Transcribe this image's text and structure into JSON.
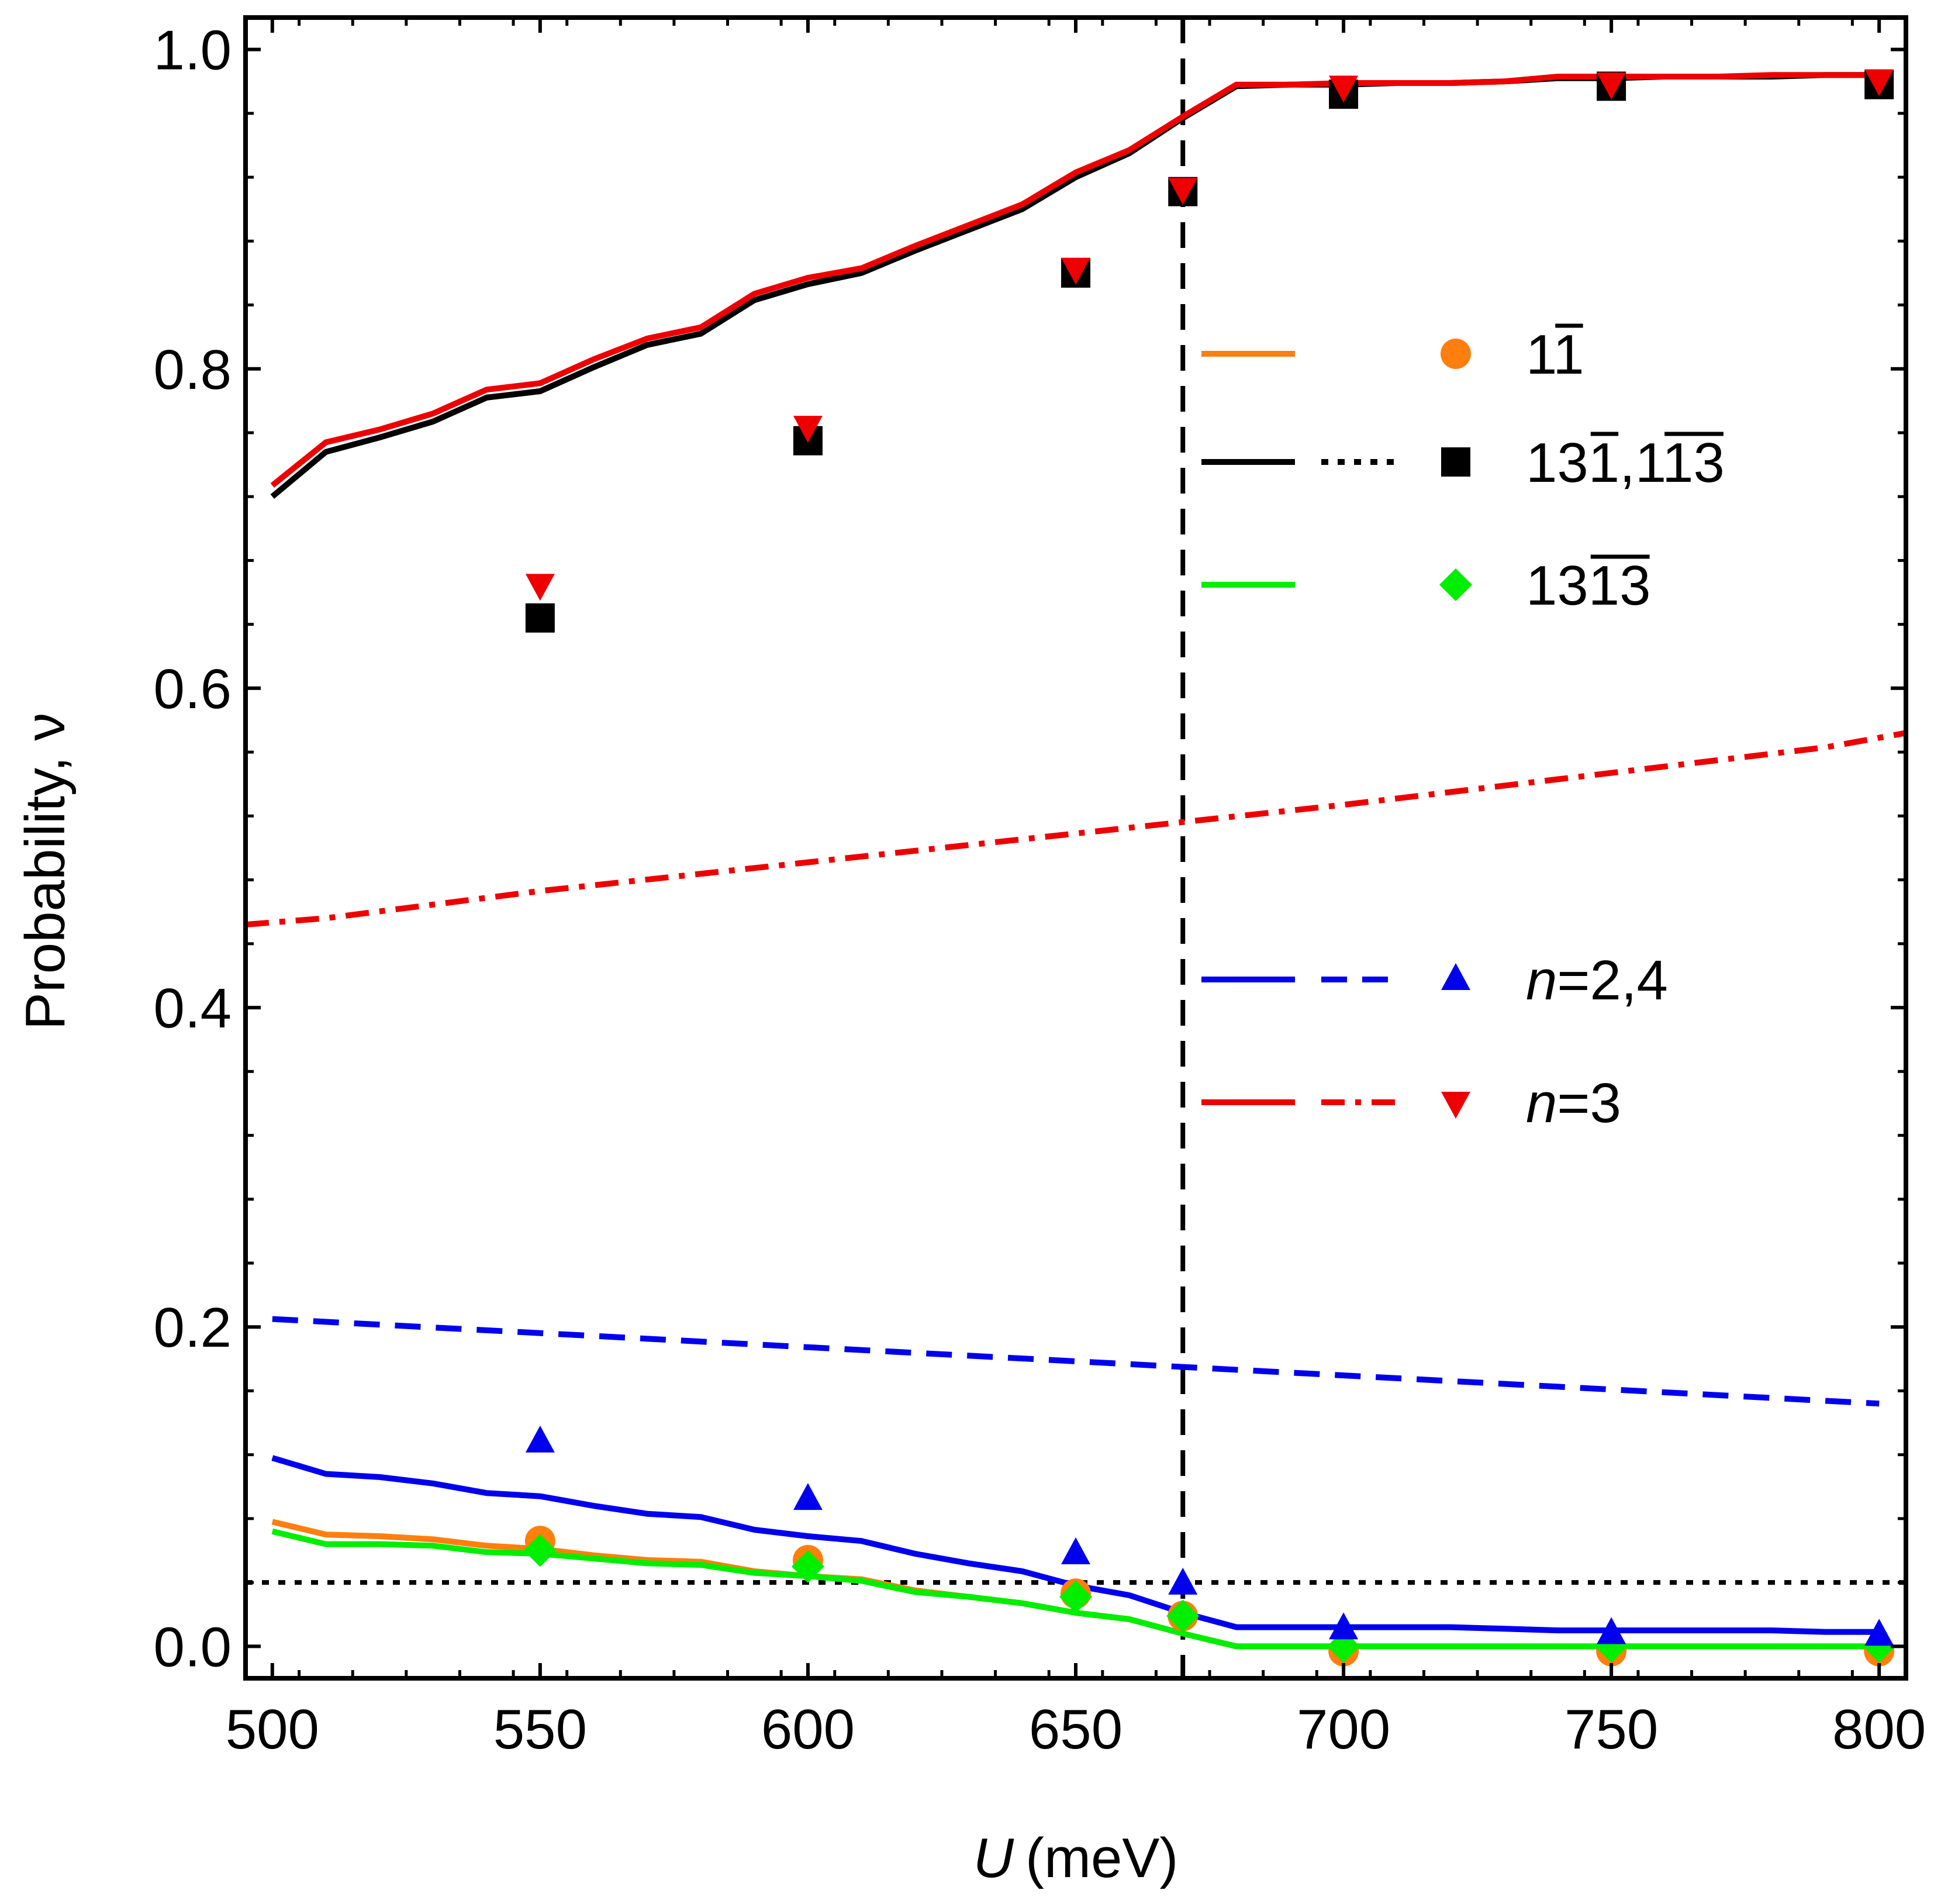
{
  "chart_data": {
    "type": "line",
    "title": "",
    "xlabel": "U (meV)",
    "xlabel_var": "U",
    "xlabel_unit": "(meV)",
    "ylabel": "Probability, ν",
    "xlim": [
      495,
      805
    ],
    "ylim": [
      -0.02,
      1.02
    ],
    "xticks": [
      500,
      550,
      600,
      650,
      700,
      750,
      800
    ],
    "xtick_labels": [
      "500",
      "550",
      "600",
      "650",
      "700",
      "750",
      "800"
    ],
    "yticks": [
      0.0,
      0.2,
      0.4,
      0.6,
      0.8,
      1.0
    ],
    "ytick_labels": [
      "0.0",
      "0.2",
      "0.4",
      "0.6",
      "0.8",
      "1.0"
    ],
    "vertical_line": {
      "x": 670,
      "style": "dashed",
      "color": "#000000"
    },
    "horizontal_line": {
      "y": 0.04,
      "style": "dotted",
      "color": "#000000"
    },
    "x_grid": [
      500,
      510,
      520,
      530,
      540,
      550,
      560,
      570,
      580,
      590,
      600,
      610,
      620,
      630,
      640,
      650,
      660,
      670,
      680,
      690,
      700,
      710,
      720,
      730,
      740,
      750,
      760,
      770,
      780,
      790,
      800
    ],
    "series": [
      {
        "name": "11̄ line",
        "color": "#ff7f0e",
        "style": "solid",
        "kind": "line",
        "values": [
          0.078,
          0.07,
          0.069,
          0.067,
          0.063,
          0.061,
          0.057,
          0.054,
          0.053,
          0.047,
          0.044,
          0.042,
          0.035,
          0.031,
          0.027,
          0.021,
          0.017,
          0.008,
          0.0,
          0.0,
          0.0,
          0.0,
          0.0,
          0.0,
          0.0,
          0.0,
          0.0,
          0.0,
          0.0,
          0.0,
          0.0
        ]
      },
      {
        "name": "131̄,11̄3̄ line",
        "color": "#000000",
        "style": "solid",
        "kind": "line",
        "values": [
          0.72,
          0.748,
          0.757,
          0.767,
          0.782,
          0.786,
          0.801,
          0.815,
          0.822,
          0.843,
          0.853,
          0.86,
          0.874,
          0.887,
          0.9,
          0.92,
          0.935,
          0.957,
          0.977,
          0.978,
          0.978,
          0.979,
          0.979,
          0.98,
          0.982,
          0.982,
          0.983,
          0.983,
          0.983,
          0.984,
          0.984
        ]
      },
      {
        "name": "131̄3̄ line",
        "color": "#00ee00",
        "style": "solid",
        "kind": "line",
        "values": [
          0.072,
          0.064,
          0.064,
          0.063,
          0.059,
          0.058,
          0.055,
          0.052,
          0.051,
          0.046,
          0.044,
          0.041,
          0.034,
          0.031,
          0.027,
          0.021,
          0.017,
          0.008,
          0.0,
          0.0,
          0.0,
          0.0,
          0.0,
          0.0,
          0.0,
          0.0,
          0.0,
          0.0,
          0.0,
          0.0,
          0.0
        ]
      },
      {
        "name": "n=2,4 solid",
        "color": "#0000ee",
        "style": "solid",
        "kind": "line",
        "values": [
          0.118,
          0.108,
          0.106,
          0.102,
          0.096,
          0.094,
          0.088,
          0.083,
          0.081,
          0.073,
          0.069,
          0.066,
          0.058,
          0.052,
          0.047,
          0.038,
          0.032,
          0.021,
          0.012,
          0.012,
          0.012,
          0.012,
          0.012,
          0.011,
          0.01,
          0.01,
          0.01,
          0.01,
          0.01,
          0.009,
          0.009
        ]
      },
      {
        "name": "n=3 solid",
        "color": "#ee0000",
        "style": "solid",
        "kind": "line",
        "values": [
          0.727,
          0.754,
          0.762,
          0.772,
          0.787,
          0.791,
          0.806,
          0.819,
          0.826,
          0.847,
          0.857,
          0.863,
          0.877,
          0.89,
          0.903,
          0.923,
          0.937,
          0.958,
          0.978,
          0.978,
          0.979,
          0.979,
          0.979,
          0.98,
          0.983,
          0.983,
          0.983,
          0.983,
          0.984,
          0.984,
          0.984
        ]
      },
      {
        "name": "n=2,4 dashed",
        "color": "#0000ee",
        "style": "dashed",
        "kind": "line",
        "x": [
          500,
          800
        ],
        "values": [
          0.205,
          0.152
        ]
      },
      {
        "name": "n=3 dash-dot",
        "color": "#ee0000",
        "style": "dashdot",
        "kind": "line",
        "x": [
          495,
          510,
          550,
          600,
          650,
          700,
          750,
          790,
          805
        ],
        "values": [
          0.452,
          0.456,
          0.473,
          0.491,
          0.509,
          0.527,
          0.547,
          0.563,
          0.572
        ]
      },
      {
        "name": "11̄ points",
        "color": "#ff7f0e",
        "marker": "circle",
        "kind": "scatter",
        "x": [
          550,
          600,
          650,
          670,
          700,
          750,
          800
        ],
        "values": [
          0.066,
          0.054,
          0.033,
          0.019,
          -0.003,
          -0.003,
          -0.003
        ]
      },
      {
        "name": "131̄,11̄3̄ points",
        "color": "#000000",
        "marker": "square",
        "kind": "scatter",
        "x": [
          550,
          600,
          650,
          670,
          700,
          750,
          800
        ],
        "values": [
          0.644,
          0.755,
          0.86,
          0.911,
          0.972,
          0.977,
          0.978
        ]
      },
      {
        "name": "131̄3̄ points",
        "color": "#00ee00",
        "marker": "diamond",
        "kind": "scatter",
        "x": [
          550,
          600,
          650,
          670,
          700,
          750,
          800
        ],
        "values": [
          0.06,
          0.05,
          0.031,
          0.019,
          0.0,
          0.0,
          0.0
        ]
      },
      {
        "name": "n=2,4 points",
        "color": "#0000ee",
        "marker": "triangle-up",
        "kind": "scatter",
        "x": [
          550,
          600,
          650,
          670,
          700,
          750,
          800
        ],
        "values": [
          0.128,
          0.092,
          0.058,
          0.039,
          0.011,
          0.008,
          0.007
        ]
      },
      {
        "name": "n=3 points",
        "color": "#ee0000",
        "marker": "triangle-down",
        "kind": "scatter",
        "x": [
          550,
          600,
          650,
          670,
          700,
          750,
          800
        ],
        "values": [
          0.665,
          0.764,
          0.863,
          0.913,
          0.977,
          0.979,
          0.981
        ]
      }
    ],
    "legend": {
      "placement": "right",
      "entries": [
        {
          "label_main": "1",
          "label_bar": "1",
          "label_bar2": "",
          "label_tail": "",
          "color": "#ff7f0e",
          "line": "solid",
          "line2": "",
          "marker": "circle"
        },
        {
          "label_main": "13",
          "label_bar": "1",
          "label_bar2": "",
          "label_tail": ",1",
          "label_bar3": "13",
          "color": "#000000",
          "line": "solid",
          "line2": "dotted",
          "marker": "square"
        },
        {
          "label_main": "13",
          "label_bar": "13",
          "label_bar2": "",
          "label_tail": "",
          "color": "#00ee00",
          "line": "solid",
          "line2": "",
          "marker": "diamond"
        },
        {
          "label_var": "n",
          "label_rest": "=2,4",
          "color": "#0000ee",
          "line": "solid",
          "line2": "dashed",
          "marker": "triangle-up"
        },
        {
          "label_var": "n",
          "label_rest": "=3",
          "color": "#ee0000",
          "line": "solid",
          "line2": "dashdot",
          "marker": "triangle-down"
        }
      ]
    }
  }
}
